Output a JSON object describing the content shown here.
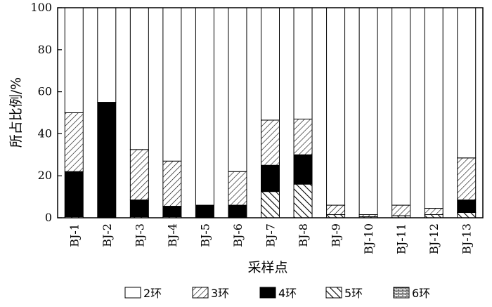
{
  "chart_data": {
    "type": "bar",
    "stacked": true,
    "xlabel": "采样点",
    "ylabel": "所占比例/%",
    "ylim": [
      0,
      100
    ],
    "yticks": [
      0,
      20,
      40,
      60,
      80,
      100
    ],
    "categories": [
      "BJ-1",
      "BJ-2",
      "BJ-3",
      "BJ-4",
      "BJ-5",
      "BJ-6",
      "BJ-7",
      "BJ-8",
      "BJ-9",
      "BJ-10",
      "BJ-11",
      "BJ-12",
      "BJ-13"
    ],
    "stack_order": [
      "6环",
      "5环",
      "4环",
      "3环",
      "2环"
    ],
    "series": [
      {
        "name": "2环",
        "pattern": "white",
        "values": [
          50,
          45,
          67.5,
          73,
          94,
          78,
          53.5,
          53,
          94,
          98.5,
          94,
          95.5,
          71.5
        ]
      },
      {
        "name": "3环",
        "pattern": "hatch",
        "values": [
          28,
          0,
          24,
          21.5,
          0,
          16,
          21.5,
          17,
          4.5,
          1,
          5,
          3,
          20
        ]
      },
      {
        "name": "4环",
        "pattern": "black",
        "values": [
          21.5,
          55,
          8,
          5,
          6,
          6,
          12.5,
          14,
          0,
          0,
          0,
          0,
          6
        ]
      },
      {
        "name": "5环",
        "pattern": "diag",
        "values": [
          0.5,
          0,
          0.5,
          0.5,
          0,
          0,
          12.5,
          16,
          1.5,
          0.5,
          1,
          1.5,
          2.5
        ]
      },
      {
        "name": "6环",
        "pattern": "brick",
        "values": [
          0,
          0,
          0,
          0,
          0,
          0,
          0,
          0,
          0,
          0,
          0,
          0,
          0
        ]
      }
    ]
  }
}
